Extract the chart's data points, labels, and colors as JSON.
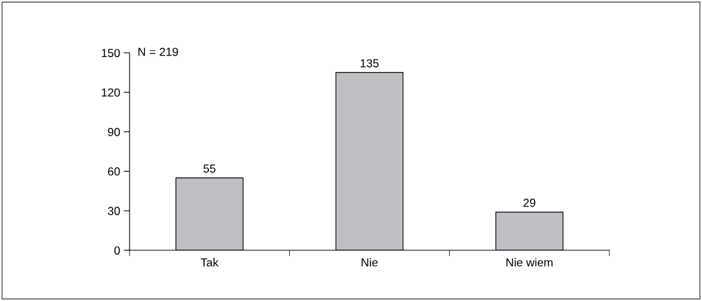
{
  "chart_data": {
    "type": "bar",
    "categories": [
      "Tak",
      "Nie",
      "Nie wiem"
    ],
    "values": [
      55,
      135,
      29
    ],
    "color": "#c0c0c4",
    "ylim": [
      0,
      150
    ],
    "yticks": [
      0,
      30,
      60,
      90,
      120,
      150
    ],
    "data_labels": true,
    "grid": false,
    "annotations": [
      "N = 219"
    ]
  }
}
